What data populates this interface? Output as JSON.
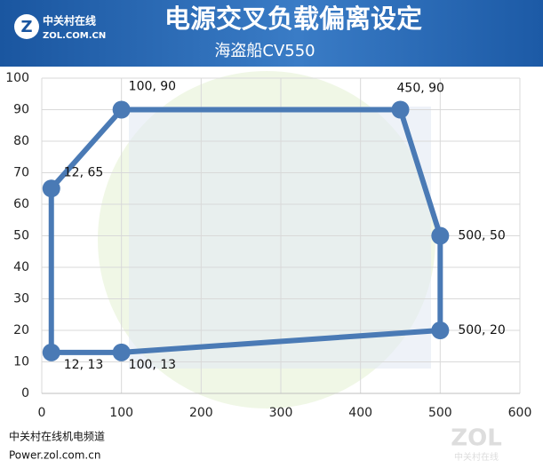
{
  "header": {
    "logo_cn": "中关村在线",
    "logo_en": "ZOL.COM.CN"
  },
  "footer": {
    "channel": "中关村在线机电频道",
    "url": "Power.zol.com.cn"
  },
  "watermark": {
    "logo": "ZOL",
    "cn": "中关村在线"
  },
  "chart_data": {
    "type": "line",
    "title": "电源交叉负载偏离设定",
    "subtitle": "海盗船CV550",
    "x": [
      12,
      100,
      450,
      500,
      500,
      100,
      12
    ],
    "values": [
      65,
      90,
      90,
      50,
      20,
      13,
      13
    ],
    "value_labels": [
      "12, 65",
      "100, 90",
      "450, 90",
      "500, 50",
      "500, 20",
      "100, 13",
      "12, 13"
    ],
    "color": "#4a7ab5",
    "closed": true,
    "xlim": [
      0,
      600
    ],
    "xticks": [
      0,
      100,
      200,
      300,
      400,
      500,
      600
    ],
    "ylim": [
      0,
      100
    ],
    "yticks": [
      0,
      10,
      20,
      30,
      40,
      50,
      60,
      70,
      80,
      90,
      100
    ],
    "grid": true
  }
}
